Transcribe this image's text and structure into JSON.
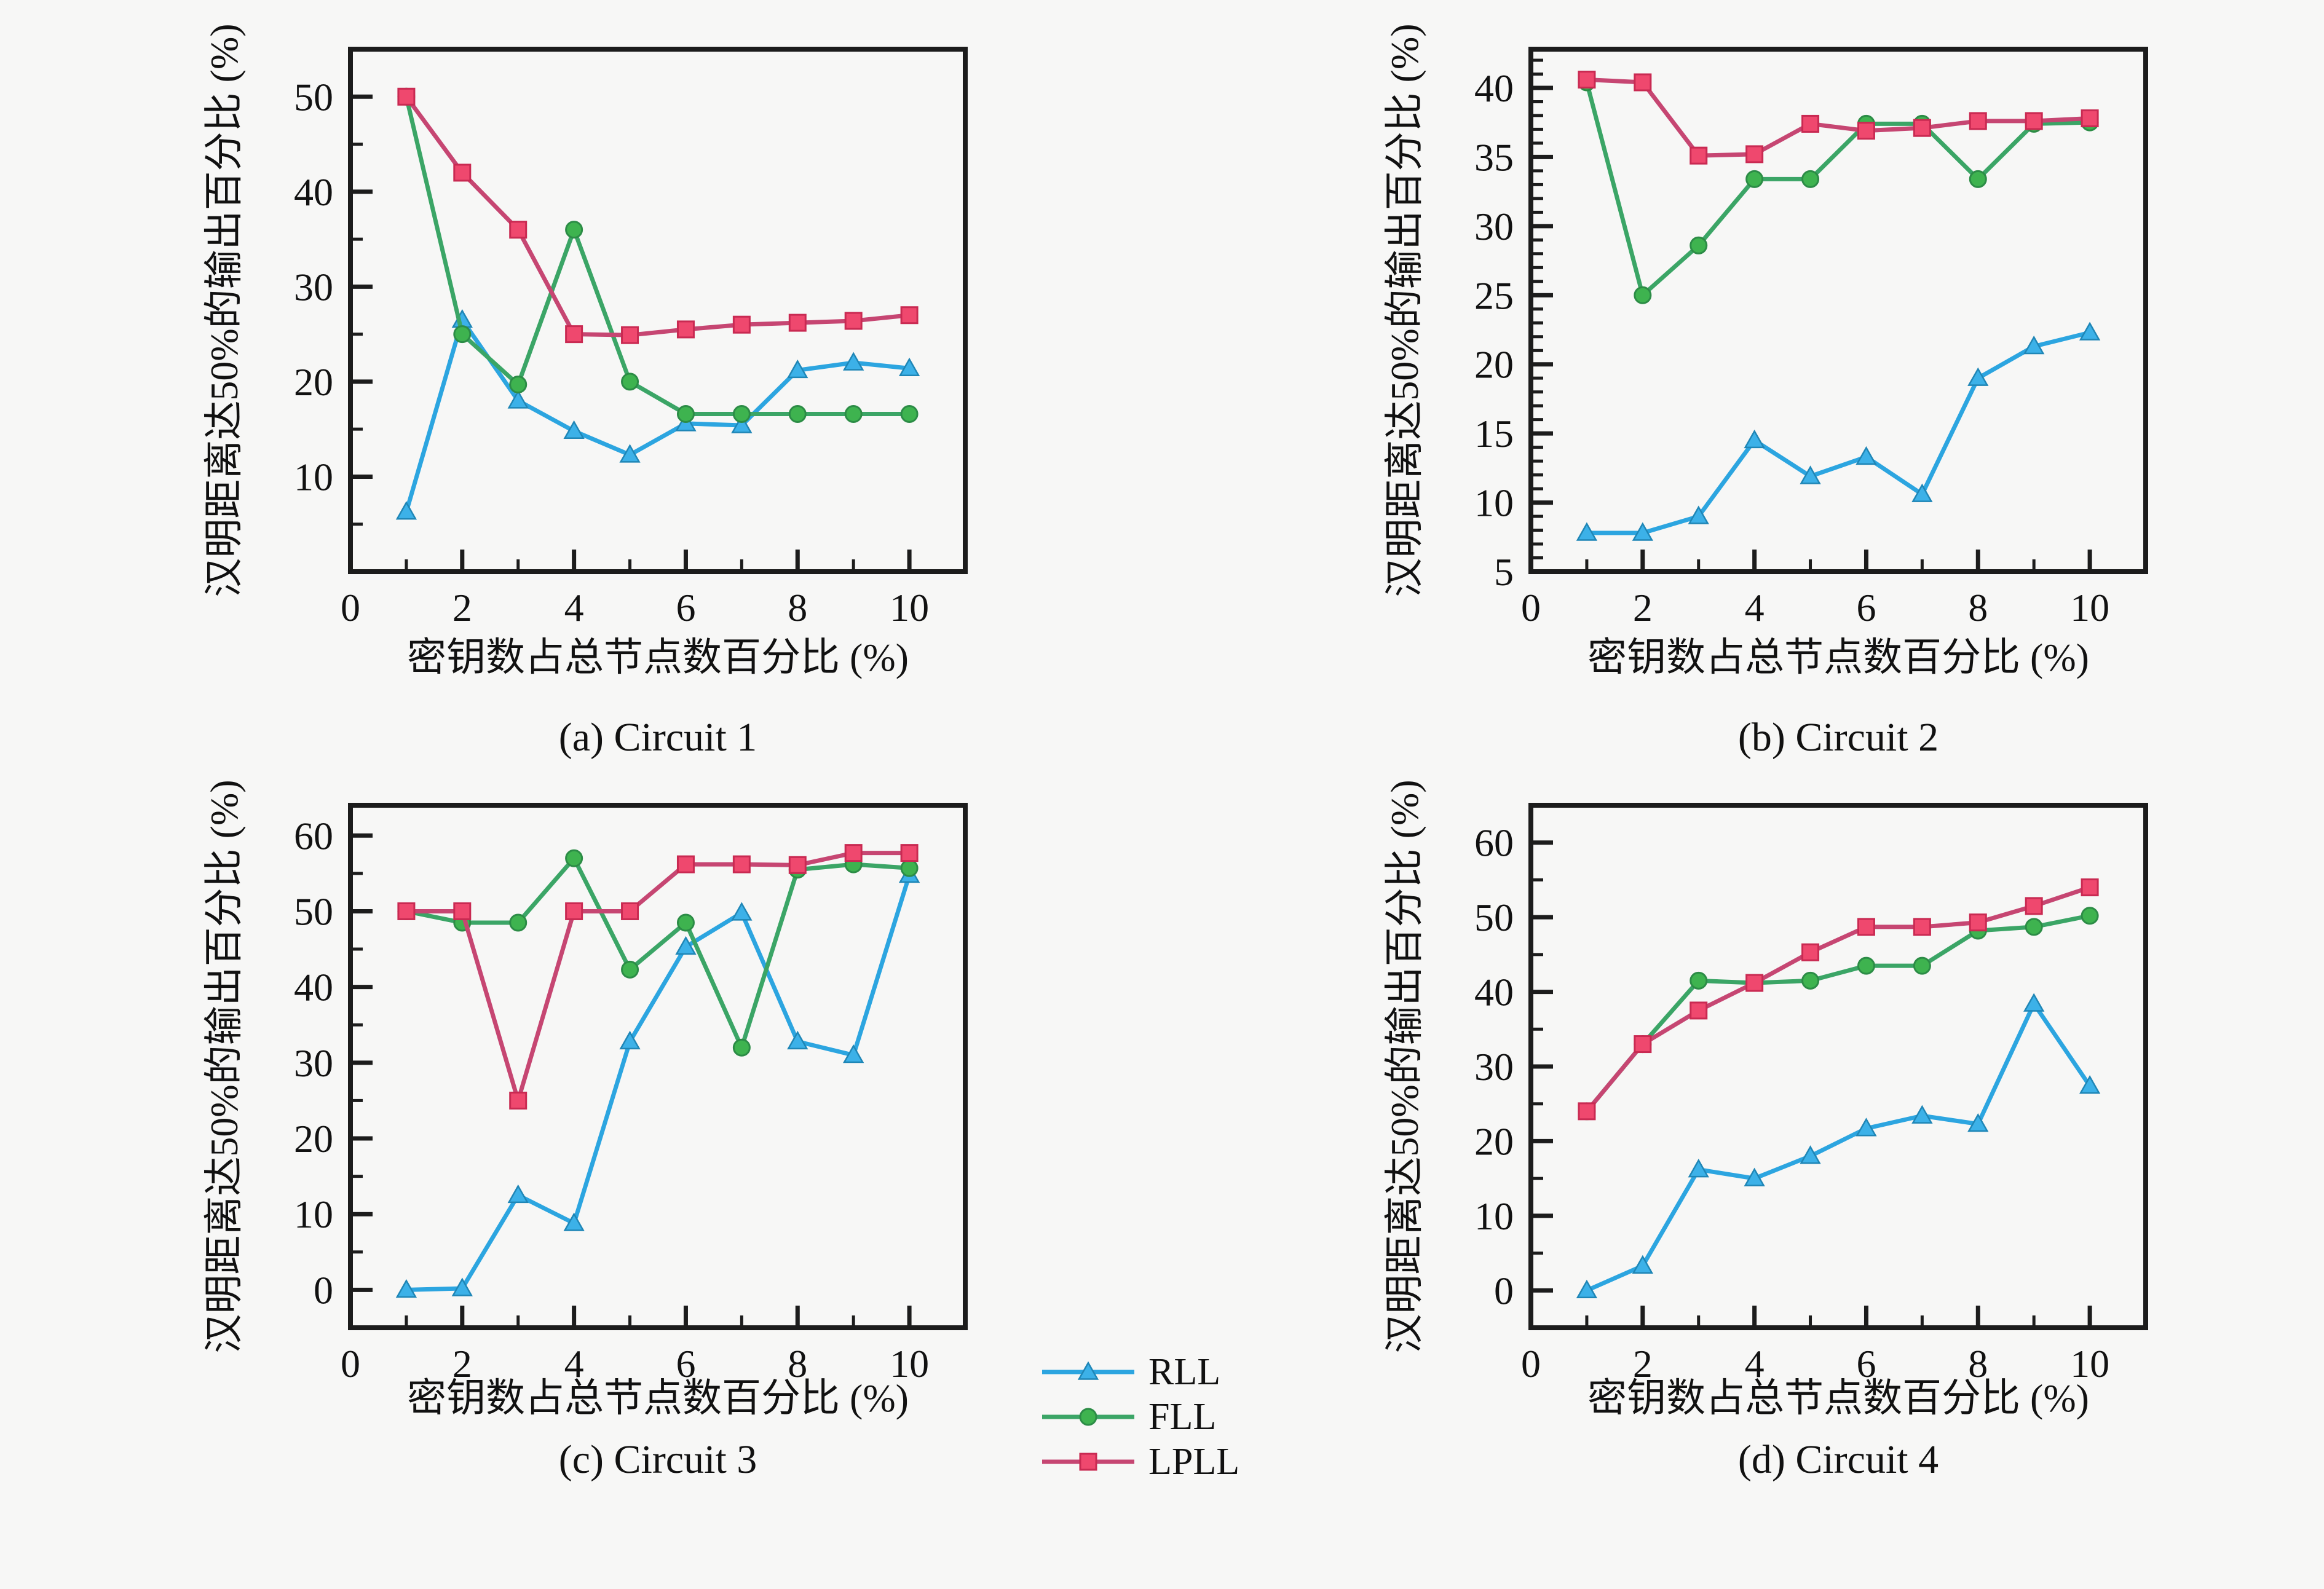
{
  "figure": {
    "x_axis_label": "密钥数占总节点数百分比 (%)",
    "y_axis_label": "汉明距离达50%的输出百分比 (%)",
    "background_color": "#f7f7f6",
    "axis_color": "#1c1c1c",
    "text_color": "#111111"
  },
  "legend": {
    "position": "bottom-center",
    "items": [
      {
        "label": "RLL",
        "marker": "triangle",
        "line_color": "#2ca5e0",
        "marker_color": "#3cb1e8",
        "edge_color": "#1f86b6"
      },
      {
        "label": "FLL",
        "marker": "circle",
        "line_color": "#3ba566",
        "marker_color": "#3eb34f",
        "edge_color": "#2c8c46"
      },
      {
        "label": "LPLL",
        "marker": "square",
        "line_color": "#c64672",
        "marker_color": "#ef486e",
        "edge_color": "#c92a52"
      }
    ]
  },
  "chart_data": [
    {
      "type": "line",
      "title": "(a) Circuit 1",
      "xlabel": "密钥数占总节点数百分比 (%)",
      "ylabel": "汉明距离达50%的输出百分比 (%)",
      "x": [
        1,
        2,
        3,
        4,
        5,
        6,
        7,
        8,
        9,
        10
      ],
      "xlim": [
        0,
        11
      ],
      "ylim": [
        0,
        55
      ],
      "xticks": [
        0,
        2,
        4,
        6,
        8,
        10
      ],
      "xminor": [
        1,
        3,
        5,
        7,
        9,
        11
      ],
      "yticks": [
        10,
        20,
        30,
        40,
        50
      ],
      "yminor": [
        5,
        15,
        25,
        35,
        45,
        55
      ],
      "grid": false,
      "series": [
        {
          "name": "RLL",
          "values": [
            6.3,
            26.5,
            18.0,
            14.8,
            12.3,
            15.6,
            15.4,
            21.2,
            22.0,
            21.4
          ]
        },
        {
          "name": "FLL",
          "values": [
            50.0,
            25.0,
            19.7,
            36.0,
            20.0,
            16.6,
            16.6,
            16.6,
            16.6,
            16.6
          ]
        },
        {
          "name": "LPLL",
          "values": [
            50.0,
            42.0,
            36.0,
            25.0,
            24.9,
            25.5,
            26.0,
            26.2,
            26.4,
            27.0
          ]
        }
      ]
    },
    {
      "type": "line",
      "title": "(b) Circuit 2",
      "xlabel": "密钥数占总节点数百分比 (%)",
      "ylabel": "汉明距离达50%的输出百分比 (%)",
      "x": [
        1,
        2,
        3,
        4,
        5,
        6,
        7,
        8,
        9,
        10
      ],
      "xlim": [
        0,
        11
      ],
      "ylim": [
        5,
        42.8
      ],
      "xticks": [
        0,
        2,
        4,
        6,
        8,
        10
      ],
      "xminor": [
        1,
        3,
        5,
        7,
        9,
        11
      ],
      "yticks": [
        5,
        10,
        15,
        20,
        25,
        30,
        35,
        40
      ],
      "yminor": [
        6,
        7,
        8,
        9,
        11,
        12,
        13,
        14,
        16,
        17,
        18,
        19,
        21,
        22,
        23,
        24,
        26,
        27,
        28,
        29,
        31,
        32,
        33,
        34,
        36,
        37,
        38,
        39,
        41,
        42
      ],
      "grid": false,
      "series": [
        {
          "name": "RLL",
          "values": [
            7.8,
            7.8,
            9.0,
            14.5,
            11.9,
            13.3,
            10.6,
            19.0,
            21.3,
            22.3
          ]
        },
        {
          "name": "FLL",
          "values": [
            40.4,
            25.0,
            28.6,
            33.4,
            33.4,
            37.4,
            37.4,
            33.4,
            37.4,
            37.5
          ]
        },
        {
          "name": "LPLL",
          "values": [
            40.6,
            40.4,
            35.1,
            35.2,
            37.4,
            36.9,
            37.1,
            37.6,
            37.6,
            37.8
          ]
        }
      ]
    },
    {
      "type": "line",
      "title": "(c) Circuit 3",
      "xlabel": "密钥数占总节点数百分比 (%)",
      "ylabel": "汉明距离达50%的输出百分比 (%)",
      "x": [
        1,
        2,
        3,
        4,
        5,
        6,
        7,
        8,
        9,
        10
      ],
      "xlim": [
        0,
        11
      ],
      "ylim": [
        -5,
        64
      ],
      "xticks": [
        0,
        2,
        4,
        6,
        8,
        10
      ],
      "xminor": [
        1,
        3,
        5,
        7,
        9,
        11
      ],
      "yticks": [
        0,
        10,
        20,
        30,
        40,
        50,
        60
      ],
      "yminor": [
        5,
        15,
        25,
        35,
        45,
        55
      ],
      "grid": false,
      "series": [
        {
          "name": "RLL",
          "values": [
            0.0,
            0.2,
            12.5,
            8.8,
            32.8,
            45.3,
            49.8,
            32.8,
            31.0,
            54.8
          ]
        },
        {
          "name": "FLL",
          "values": [
            50.0,
            48.5,
            48.5,
            57.0,
            42.3,
            48.5,
            32.0,
            55.5,
            56.2,
            55.7
          ]
        },
        {
          "name": "LPLL",
          "values": [
            50.0,
            50.0,
            25.0,
            50.0,
            50.0,
            56.2,
            56.2,
            56.1,
            57.7,
            57.7
          ]
        }
      ]
    },
    {
      "type": "line",
      "title": "(d) Circuit 4",
      "xlabel": "密钥数占总节点数百分比 (%)",
      "ylabel": "汉明距离达50%的输出百分比 (%)",
      "x": [
        1,
        2,
        3,
        4,
        5,
        6,
        7,
        8,
        9,
        10
      ],
      "xlim": [
        0,
        11
      ],
      "ylim": [
        -5,
        65
      ],
      "xticks": [
        0,
        2,
        4,
        6,
        8,
        10
      ],
      "xminor": [
        1,
        3,
        5,
        7,
        9,
        11
      ],
      "yticks": [
        0,
        10,
        20,
        30,
        40,
        50,
        60
      ],
      "yminor": [
        5,
        15,
        25,
        35,
        45,
        55
      ],
      "grid": false,
      "series": [
        {
          "name": "RLL",
          "values": [
            0.0,
            3.3,
            16.2,
            15.0,
            18.0,
            21.7,
            23.4,
            22.3,
            38.4,
            27.4
          ]
        },
        {
          "name": "FLL",
          "values": [
            24.0,
            33.0,
            41.5,
            41.2,
            41.5,
            43.5,
            43.5,
            48.2,
            48.7,
            50.2
          ]
        },
        {
          "name": "LPLL",
          "values": [
            24.0,
            33.0,
            37.5,
            41.2,
            45.3,
            48.7,
            48.7,
            49.3,
            51.5,
            54.0
          ]
        }
      ]
    }
  ]
}
